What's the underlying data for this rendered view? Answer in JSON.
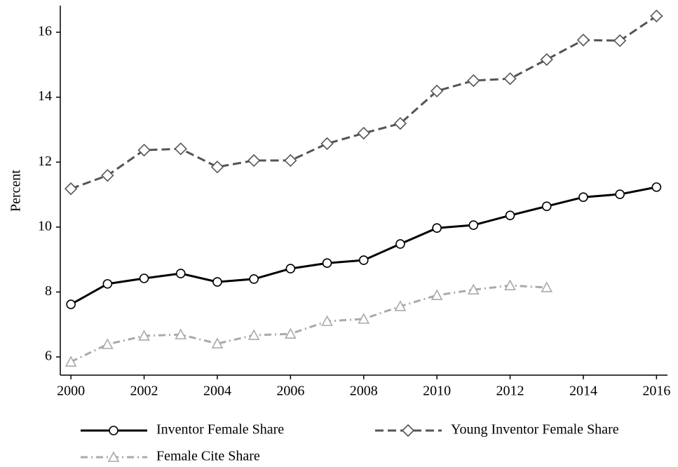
{
  "chart_data": {
    "type": "line",
    "y_label": "Percent",
    "x": [
      2000,
      2001,
      2002,
      2003,
      2004,
      2005,
      2006,
      2007,
      2008,
      2009,
      2010,
      2011,
      2012,
      2013,
      2014,
      2015,
      2016
    ],
    "series": [
      {
        "name": "Inventor Female Share",
        "color": "#000000",
        "marker": "circle",
        "dash": "solid",
        "values": [
          7.62,
          8.25,
          8.42,
          8.57,
          8.31,
          8.4,
          8.72,
          8.89,
          8.98,
          9.48,
          9.97,
          10.06,
          10.36,
          10.64,
          10.92,
          11.01,
          11.23
        ]
      },
      {
        "name": "Young Inventor Female Share",
        "color": "#555555",
        "marker": "diamond",
        "dash": "dash",
        "values": [
          11.18,
          11.59,
          12.37,
          12.41,
          11.85,
          12.05,
          12.05,
          12.57,
          12.89,
          13.19,
          14.19,
          14.51,
          14.57,
          15.16,
          15.76,
          15.74,
          16.5
        ]
      },
      {
        "name": "Female Cite Share",
        "color": "#aaaaaa",
        "marker": "triangle",
        "dash": "dashdot",
        "values": [
          5.85,
          6.39,
          6.65,
          6.69,
          6.41,
          6.67,
          6.71,
          7.1,
          7.17,
          7.56,
          7.9,
          8.07,
          8.2,
          8.14,
          null,
          null,
          null
        ]
      }
    ],
    "xlim": [
      1999.71,
      2016.3
    ],
    "xticks": [
      2000,
      2002,
      2004,
      2006,
      2008,
      2010,
      2012,
      2014,
      2016
    ],
    "ylim": [
      5.44,
      16.82
    ],
    "yticks": [
      6,
      8,
      10,
      12,
      14,
      16
    ],
    "grid": false,
    "legend": "bottom"
  }
}
